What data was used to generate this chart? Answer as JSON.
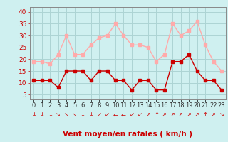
{
  "x": [
    0,
    1,
    2,
    3,
    4,
    5,
    6,
    7,
    8,
    9,
    10,
    11,
    12,
    13,
    14,
    15,
    16,
    17,
    18,
    19,
    20,
    21,
    22,
    23
  ],
  "wind_avg": [
    11,
    11,
    11,
    8,
    15,
    15,
    15,
    11,
    15,
    15,
    11,
    11,
    7,
    11,
    11,
    7,
    7,
    19,
    19,
    22,
    15,
    11,
    11,
    7
  ],
  "wind_gust": [
    19,
    19,
    18,
    22,
    30,
    22,
    22,
    26,
    29,
    30,
    35,
    30,
    26,
    26,
    25,
    19,
    22,
    35,
    30,
    32,
    36,
    26,
    19,
    15
  ],
  "avg_color": "#cc0000",
  "gust_color": "#ffaaaa",
  "bg_color": "#cff0f0",
  "grid_color": "#acd4d4",
  "xlabel": "Vent moyen/en rafales ( km/h )",
  "xlabel_color": "#cc0000",
  "yticks": [
    5,
    10,
    15,
    20,
    25,
    30,
    35,
    40
  ],
  "xlim": [
    -0.5,
    23.5
  ],
  "ylim": [
    3,
    42
  ],
  "wind_arrows": [
    "↓",
    "↓",
    "↓",
    "↘",
    "↘",
    "↘",
    "↓",
    "↓",
    "↙",
    "↙",
    "←",
    "←",
    "↙",
    "↙",
    "↗",
    "↑",
    "↗",
    "↗",
    "↗",
    "↗",
    "↗",
    "↑",
    "↗",
    "↘"
  ],
  "tick_fontsize": 6.5,
  "arrow_fontsize": 6,
  "label_fontsize": 7.5
}
